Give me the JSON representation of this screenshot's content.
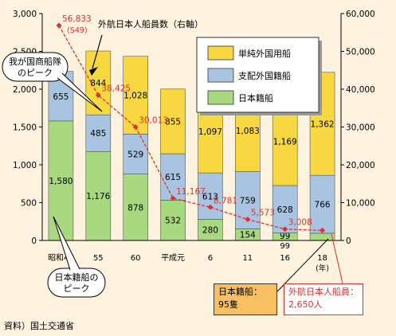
{
  "chart_data": {
    "type": "bar",
    "stacked": true,
    "categories": [
      "昭和47",
      "55",
      "60",
      "平成元",
      "6",
      "11",
      "16",
      "18"
    ],
    "x_unit": "(年)",
    "series": [
      {
        "name": "日本籍船",
        "color": "#a8d880",
        "values": [
          1580,
          1176,
          878,
          532,
          280,
          154,
          99,
          95
        ]
      },
      {
        "name": "支配外国籍船",
        "color": "#a8c4e0",
        "values": [
          655,
          485,
          529,
          615,
          613,
          759,
          628,
          766
        ]
      },
      {
        "name": "単純外国用船",
        "color": "#f8d840",
        "values": [
          0,
          844,
          1028,
          855,
          1097,
          1083,
          1169,
          1362
        ]
      }
    ],
    "segment_labels": [
      [
        "1,580",
        "1,176",
        "878",
        "532",
        "280",
        "154",
        "99",
        ""
      ],
      [
        "655",
        "485",
        "529",
        "615",
        "613",
        "759",
        "628",
        "766"
      ],
      [
        "",
        "844",
        "1,028",
        "855",
        "1,097",
        "1,083",
        "1,169",
        "1,362"
      ]
    ],
    "line_series": {
      "name": "外航日本人船員数（右軸）",
      "color": "#e03030",
      "values": [
        56833,
        38425,
        30013,
        11167,
        8781,
        5573,
        3008,
        2650
      ],
      "labels": [
        "56,833",
        "38,425",
        "30,013",
        "11,167",
        "8,781",
        "5,573",
        "3,008",
        ""
      ],
      "first_sublabel": "(S49)"
    },
    "ylim_left": [
      0,
      3000
    ],
    "yticks_left": [
      "0",
      "500",
      "1,000",
      "1,500",
      "2,000",
      "2,500",
      "3,000"
    ],
    "ylim_right": [
      0,
      60000
    ],
    "yticks_right": [
      "0",
      "10,000",
      "20,000",
      "30,000",
      "40,000",
      "50,000",
      "60,000"
    ],
    "legend_placement": "top-right",
    "annotations": {
      "fleet_peak": "我が国商船隊\nのピーク",
      "jp_ship_peak": "日本籍船の\nピーク",
      "jp_ships_2006": "日本籍船：\n95隻",
      "seafarers_2006": "外航日本人船員：\n2,650人"
    },
    "source": "資料）国土交通省"
  }
}
